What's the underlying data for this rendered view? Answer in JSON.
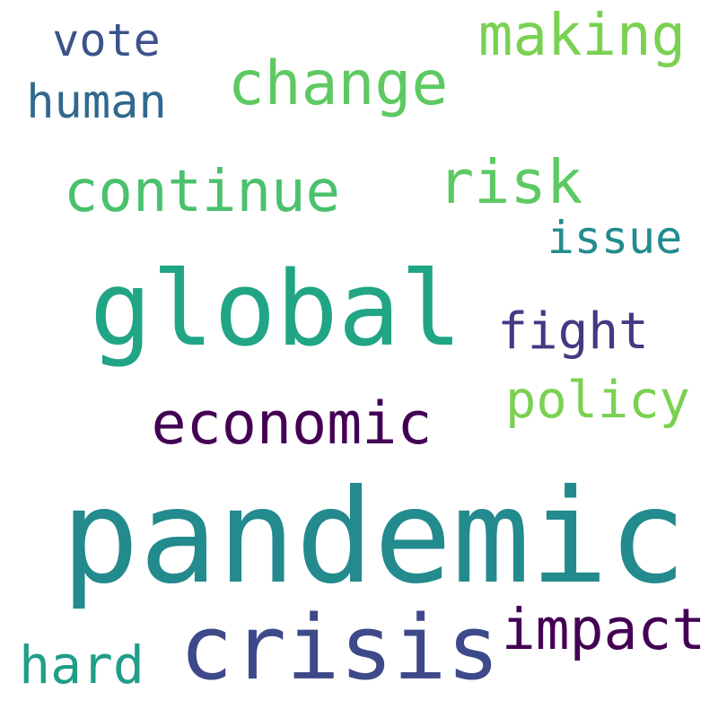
{
  "words": [
    {
      "text": "pandemic",
      "color": "#238a8d"
    },
    {
      "text": "global",
      "color": "#21a585"
    },
    {
      "text": "crisis",
      "color": "#3e4989"
    },
    {
      "text": "economic",
      "color": "#440154"
    },
    {
      "text": "change",
      "color": "#5ec962"
    },
    {
      "text": "continue",
      "color": "#4ac16d"
    },
    {
      "text": "risk",
      "color": "#5ec962"
    },
    {
      "text": "making",
      "color": "#7ad151"
    },
    {
      "text": "vote",
      "color": "#3b528b"
    },
    {
      "text": "human",
      "color": "#31688e"
    },
    {
      "text": "issue",
      "color": "#228c8d"
    },
    {
      "text": "fight",
      "color": "#443983"
    },
    {
      "text": "policy",
      "color": "#7ad151"
    },
    {
      "text": "impact",
      "color": "#440154"
    },
    {
      "text": "hard",
      "color": "#1f9e89"
    }
  ]
}
